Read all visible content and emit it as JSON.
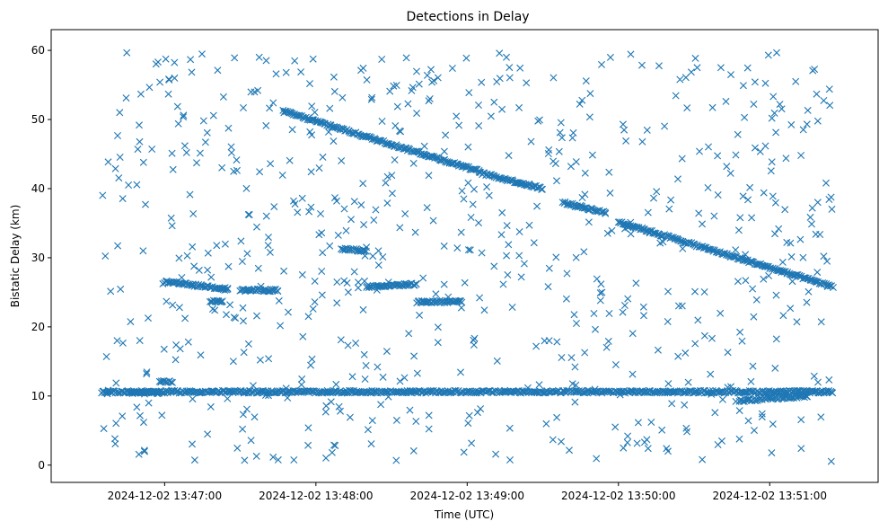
{
  "chart_data": {
    "type": "scatter",
    "title": "Detections in Delay",
    "xlabel": "Time (UTC)",
    "ylabel": "Bistatic Delay (km)",
    "marker": "x",
    "marker_color": "#1f77b4",
    "x_start": "2024-12-02 13:46:35",
    "x_end": "2024-12-02 13:51:25",
    "xlim": [
      "2024-12-02 13:46:15",
      "2024-12-02 13:51:43"
    ],
    "ylim": [
      -2.5,
      63
    ],
    "x_ticks": [
      "2024-12-02 13:47:00",
      "2024-12-02 13:48:00",
      "2024-12-02 13:49:00",
      "2024-12-02 13:50:00",
      "2024-12-02 13:51:00"
    ],
    "y_ticks": [
      0,
      10,
      20,
      30,
      40,
      50,
      60
    ],
    "grid": false,
    "tracks": [
      {
        "t_start": "2024-12-02 13:46:35",
        "t_end": "2024-12-02 13:51:25",
        "delay_start": 10.6,
        "delay_end": 10.6
      },
      {
        "t_start": "2024-12-02 13:47:00",
        "t_end": "2024-12-02 13:47:25",
        "delay_start": 26.5,
        "delay_end": 25.5
      },
      {
        "t_start": "2024-12-02 13:47:30",
        "t_end": "2024-12-02 13:47:45",
        "delay_start": 25.3,
        "delay_end": 25.3
      },
      {
        "t_start": "2024-12-02 13:47:47",
        "t_end": "2024-12-02 13:49:05",
        "delay_start": 51.2,
        "delay_end": 42.5
      },
      {
        "t_start": "2024-12-02 13:49:05",
        "t_end": "2024-12-02 13:49:30",
        "delay_start": 42.3,
        "delay_end": 40.0
      },
      {
        "t_start": "2024-12-02 13:48:10",
        "t_end": "2024-12-02 13:48:20",
        "delay_start": 31.3,
        "delay_end": 31.0
      },
      {
        "t_start": "2024-12-02 13:48:20",
        "t_end": "2024-12-02 13:48:40",
        "delay_start": 25.8,
        "delay_end": 26.2
      },
      {
        "t_start": "2024-12-02 13:48:40",
        "t_end": "2024-12-02 13:48:58",
        "delay_start": 23.6,
        "delay_end": 23.7
      },
      {
        "t_start": "2024-12-02 13:49:38",
        "t_end": "2024-12-02 13:49:55",
        "delay_start": 38.0,
        "delay_end": 36.5
      },
      {
        "t_start": "2024-12-02 13:50:00",
        "t_end": "2024-12-02 13:51:25",
        "delay_start": 35.2,
        "delay_end": 25.8
      },
      {
        "t_start": "2024-12-02 13:47:18",
        "t_end": "2024-12-02 13:47:23",
        "delay_start": 23.7,
        "delay_end": 23.7
      },
      {
        "t_start": "2024-12-02 13:46:46",
        "t_end": "2024-12-02 13:46:58",
        "delay_start": 10.5,
        "delay_end": 10.5
      },
      {
        "t_start": "2024-12-02 13:46:58",
        "t_end": "2024-12-02 13:47:03",
        "delay_start": 12.0,
        "delay_end": 12.0
      },
      {
        "t_start": "2024-12-02 13:50:48",
        "t_end": "2024-12-02 13:51:15",
        "delay_start": 9.3,
        "delay_end": 10.0
      }
    ],
    "clutter_points": 700
  }
}
